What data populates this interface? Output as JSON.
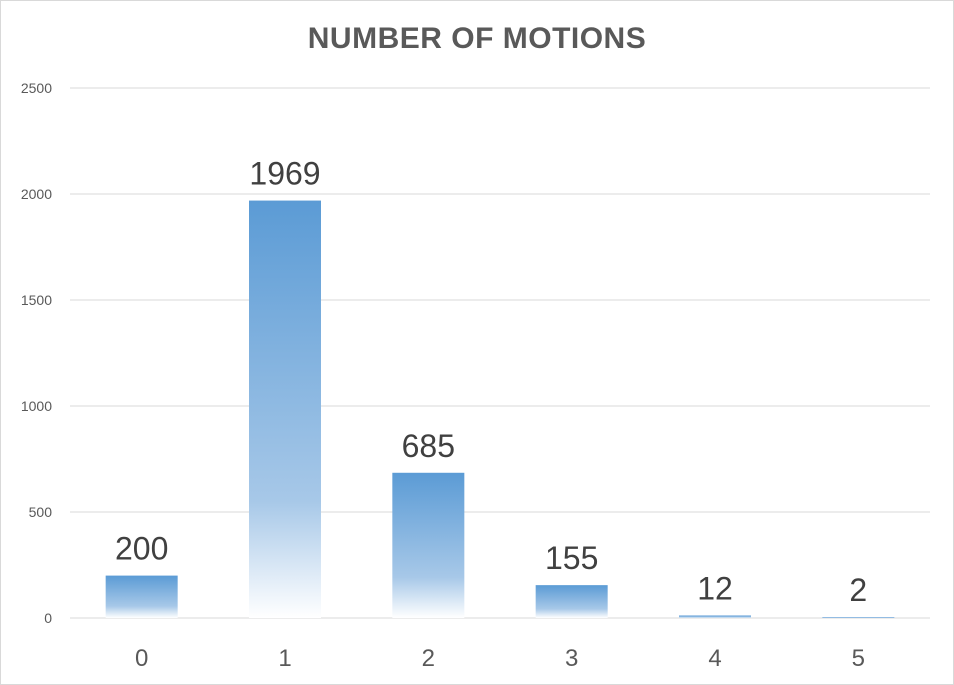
{
  "chart_data": {
    "type": "bar",
    "title": "NUMBER OF MOTIONS",
    "xlabel": "",
    "ylabel": "",
    "categories": [
      "0",
      "1",
      "2",
      "3",
      "4",
      "5"
    ],
    "values": [
      200,
      1969,
      685,
      155,
      12,
      2
    ],
    "data_labels": [
      "200",
      "1969",
      "685",
      "155",
      "12",
      "2"
    ],
    "ylim": [
      0,
      2500
    ],
    "y_ticks": [
      0,
      500,
      1000,
      1500,
      2000,
      2500
    ],
    "y_tick_labels": [
      "0",
      "500",
      "1000",
      "1500",
      "2000",
      "2500"
    ],
    "grid": true,
    "legend": "none",
    "colors": {
      "bar_top": "#5b9bd5",
      "bar_bottom": "#ffffff",
      "gridline": "#d9d9d9",
      "axis_text": "#595959",
      "title_text": "#595959",
      "data_label_text": "#404040"
    }
  }
}
